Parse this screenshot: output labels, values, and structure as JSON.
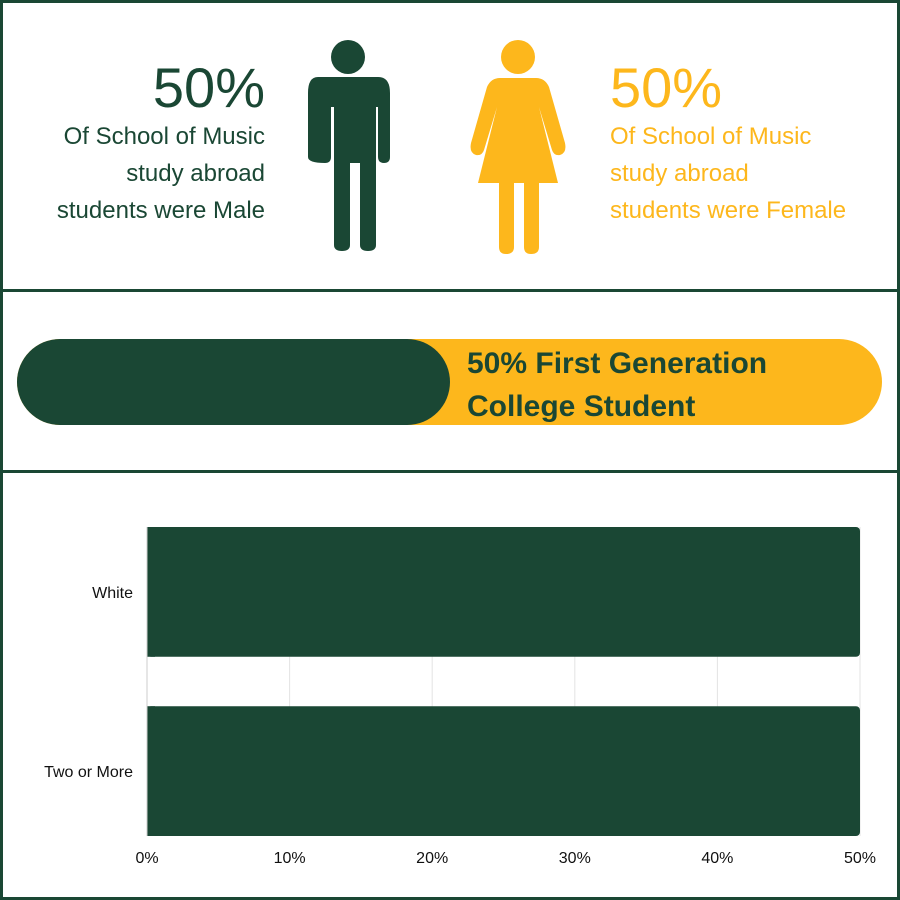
{
  "colors": {
    "primary": "#1a4734",
    "accent": "#fdb71c"
  },
  "gender": {
    "male": {
      "percent": "50%",
      "lines": [
        "Of School of Music",
        "study abroad",
        "students were Male"
      ],
      "icon": "male-person-icon"
    },
    "female": {
      "percent": "50%",
      "lines": [
        "Of School of Music",
        "study abroad",
        "students were Female"
      ],
      "icon": "female-person-icon"
    }
  },
  "first_generation": {
    "value": 50,
    "lines": [
      "50% First Generation",
      "College Student"
    ]
  },
  "chart_data": {
    "type": "bar",
    "orientation": "horizontal",
    "categories": [
      "White",
      "Two or More"
    ],
    "values": [
      50,
      50
    ],
    "xlim": [
      0,
      50
    ],
    "xticks": [
      "0%",
      "10%",
      "20%",
      "30%",
      "40%",
      "50%"
    ],
    "grid": true,
    "color": "#1a4734"
  }
}
